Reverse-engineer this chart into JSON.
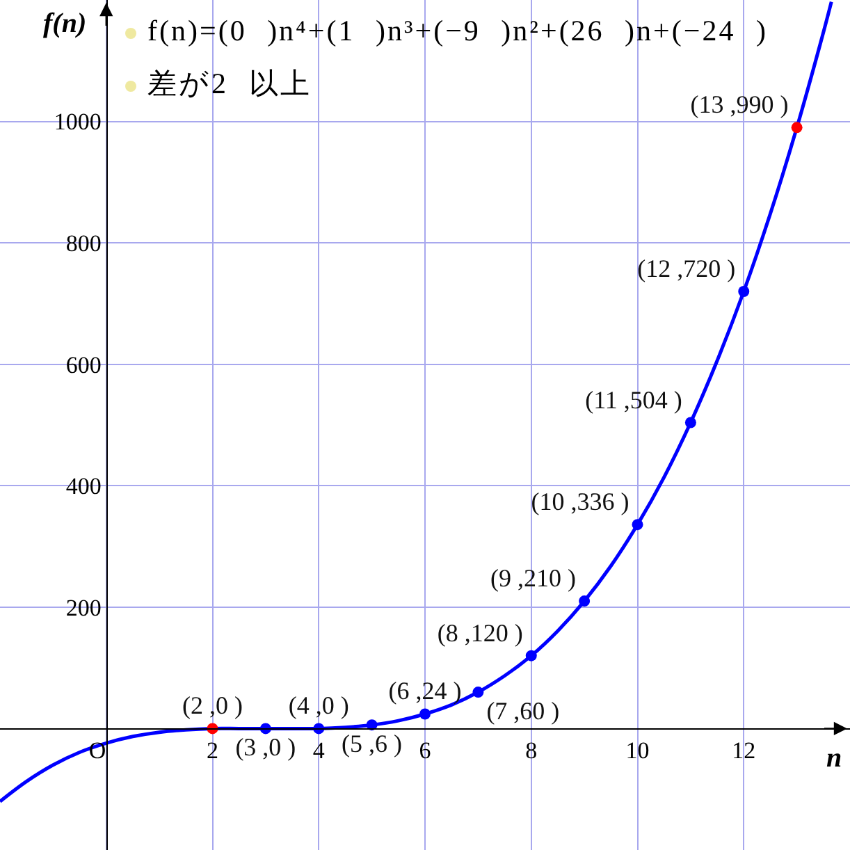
{
  "chart_data": {
    "type": "line",
    "xlabel": "n",
    "ylabel": "f(n)",
    "annotations": [
      "f(n)=(0 )n⁴+(1 )n³+(−9 )n²+(26 )n+(−24 )",
      "差が2 以上"
    ],
    "series": [
      {
        "color": "#0000ff",
        "x": [
          -2,
          -1.5,
          -1,
          -0.5,
          0,
          0.5,
          1,
          1.5,
          2,
          2.5,
          3,
          3.5,
          4,
          4.5,
          5,
          5.5,
          6,
          6.5,
          7,
          7.5,
          8,
          8.5,
          9,
          9.5,
          10,
          10.5,
          11,
          11.5,
          12,
          12.5,
          13,
          13.5,
          13.65
        ],
        "values": [
          -120,
          -87,
          -60,
          -39,
          -24,
          -13,
          -6,
          -2,
          0,
          0,
          0,
          0,
          0,
          2,
          6,
          13,
          24,
          39,
          60,
          87,
          120,
          161,
          210,
          268,
          336,
          414,
          504,
          606,
          720,
          848,
          990,
          1147,
          1197
        ]
      },
      {
        "type": "scatter",
        "marker": "circle",
        "x": [
          2,
          3,
          4,
          5,
          6,
          7,
          8,
          9,
          10,
          11,
          12,
          13
        ],
        "values": [
          0,
          0,
          0,
          6,
          24,
          60,
          120,
          210,
          336,
          504,
          720,
          990
        ],
        "colors": [
          "#ff0000",
          "#0000ff",
          "#0000ff",
          "#0000ff",
          "#0000ff",
          "#0000ff",
          "#0000ff",
          "#0000ff",
          "#0000ff",
          "#0000ff",
          "#0000ff",
          "#ff0000"
        ],
        "value_labels": [
          "(2 ,0 )",
          "(3 ,0 )",
          "(4 ,0 )",
          "(5 ,6 )",
          "(6 ,24 )",
          "(7 ,60 )",
          "(8 ,120 )",
          "(9 ,210 )",
          "(10 ,336 )",
          "(11 ,504 )",
          "(12 ,720 )",
          "(13 ,990 )"
        ]
      }
    ],
    "xlim": [
      -2,
      14
    ],
    "xticks": [
      {
        "value": -2,
        "label": null
      },
      {
        "value": 0,
        "label": "O"
      },
      2,
      4,
      6,
      8,
      10,
      12,
      {
        "value": 14,
        "label": null
      }
    ],
    "ylim": [
      -200,
      1200
    ],
    "yticks": [
      {
        "value": -200,
        "label": null
      },
      200,
      400,
      600,
      800,
      1000,
      {
        "value": 1200,
        "label": null
      }
    ],
    "grid": true
  }
}
